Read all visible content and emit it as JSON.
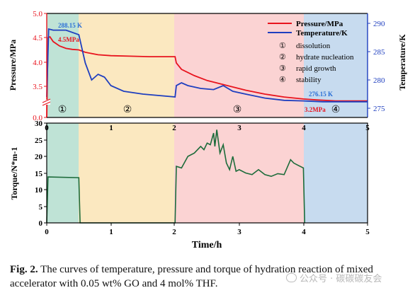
{
  "figure": {
    "top_panel": {
      "y_left_label": "Pressure/MPa",
      "y_left_ticks": [
        "0.0",
        "3.5",
        "4.0",
        "4.5",
        "5.0"
      ],
      "y_right_label": "Temperature/K",
      "y_right_ticks": [
        "275",
        "280",
        "285",
        "290"
      ],
      "x_ticks": [
        "0",
        "1",
        "2",
        "3",
        "4",
        "5"
      ],
      "legend": [
        "Pressure/MPa",
        "Temperature/K"
      ],
      "stage_list": [
        {
          "num": "①",
          "text": "dissolution"
        },
        {
          "num": "②",
          "text": "hydrate nucleation"
        },
        {
          "num": "③",
          "text": "rapid growth"
        },
        {
          "num": "④",
          "text": "stability"
        }
      ],
      "region_numbers": [
        "①",
        "②",
        "③",
        "④"
      ],
      "annotations": {
        "start_temp": "288.15 K",
        "start_pressure": "4.5MPa",
        "end_temp": "276.15 K",
        "end_pressure": "3.2MPa"
      }
    },
    "bottom_panel": {
      "y_label": "Torque/N*m-1",
      "y_ticks": [
        "0",
        "5",
        "10",
        "15",
        "20",
        "25",
        "30"
      ],
      "x_ticks": [
        "0",
        "1",
        "2",
        "3",
        "4",
        "5"
      ],
      "x_label": "Time/h"
    },
    "colors": {
      "pressure": "#e8141e",
      "temperature": "#1f3fbf",
      "torque": "#1c6b3a",
      "stage1": "#bfe3d6",
      "stage2": "#fbe8c0",
      "stage3": "#fbd3d3",
      "stage4": "#c7dbef",
      "axis_blue": "#1f3fbf",
      "annotation_blue": "#2a6fd6",
      "annotation_red": "#e8141e"
    },
    "chart_data": [
      {
        "type": "line",
        "xlabel": "",
        "ylabel": "Pressure/MPa",
        "y2label": "Temperature/K",
        "xlim": [
          0,
          5
        ],
        "stage_boundaries": [
          0,
          0.5,
          2.0,
          4.0,
          5.0
        ],
        "legend_position": "top-right",
        "series": [
          {
            "name": "Pressure/MPa",
            "axis": "left",
            "x": [
              0,
              0.02,
              0.05,
              0.1,
              0.2,
              0.3,
              0.4,
              0.5,
              0.6,
              0.8,
              1.0,
              1.3,
              1.6,
              2.0,
              2.02,
              2.1,
              2.3,
              2.5,
              2.8,
              3.1,
              3.4,
              3.7,
              4.0,
              4.2,
              4.5,
              5.0
            ],
            "y": [
              0,
              4.5,
              4.52,
              4.42,
              4.33,
              4.28,
              4.26,
              4.25,
              4.2,
              4.15,
              4.13,
              4.12,
              4.11,
              4.11,
              3.98,
              3.85,
              3.72,
              3.62,
              3.52,
              3.42,
              3.34,
              3.28,
              3.24,
              3.22,
              3.2,
              3.2
            ]
          },
          {
            "name": "Temperature/K",
            "axis": "right",
            "x": [
              0,
              0.03,
              0.1,
              0.3,
              0.5,
              0.6,
              0.7,
              0.8,
              0.9,
              1.0,
              1.2,
              1.5,
              2.0,
              2.02,
              2.1,
              2.2,
              2.4,
              2.6,
              2.75,
              2.9,
              3.1,
              3.4,
              3.7,
              4.0,
              4.3,
              5.0
            ],
            "y": [
              277,
              289,
              288.8,
              288.8,
              288,
              283,
              280,
              281,
              280.5,
              279,
              278,
              277.5,
              277,
              279,
              279.5,
              279,
              278.5,
              278.3,
              279,
              278,
              277.5,
              276.8,
              276.4,
              276.3,
              276.15,
              276.15
            ]
          }
        ]
      },
      {
        "type": "line",
        "xlabel": "Time/h",
        "ylabel": "Torque/N*m-1",
        "xlim": [
          0,
          5
        ],
        "ylim": [
          0,
          30
        ],
        "series": [
          {
            "name": "",
            "x": [
              0,
              0.02,
              0.5,
              0.52,
              2.0,
              2.02,
              2.1,
              2.2,
              2.3,
              2.4,
              2.45,
              2.5,
              2.55,
              2.6,
              2.62,
              2.65,
              2.7,
              2.75,
              2.8,
              2.85,
              2.9,
              2.95,
              3.0,
              3.1,
              3.2,
              3.3,
              3.4,
              3.5,
              3.6,
              3.7,
              3.8,
              3.85,
              3.9,
              4.0,
              4.02
            ],
            "y": [
              0,
              13.8,
              13.6,
              0,
              0,
              17,
              16.5,
              20,
              21,
              23,
              22,
              24,
              23.5,
              27,
              23,
              28,
              21,
              23.5,
              18,
              16,
              20,
              15.5,
              16,
              15,
              14.5,
              16,
              14.5,
              14,
              14.8,
              14.5,
              19,
              18,
              17.5,
              16.5,
              0
            ]
          }
        ]
      }
    ]
  },
  "caption": {
    "label": "Fig. 2.",
    "text": "The curves of temperature, pressure and torque of hydration reaction of mixed accelerator with 0.05 wt% GO and 4 mol% THF."
  },
  "watermark": "公众号 · 碳碳碳友会"
}
